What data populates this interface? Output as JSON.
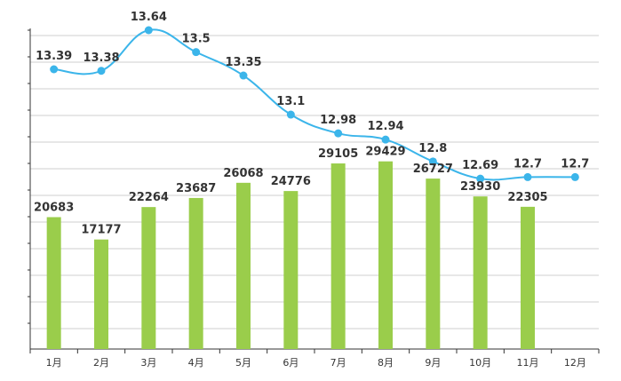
{
  "chart_data": {
    "type": "bar+line",
    "categories": [
      "1月",
      "2月",
      "3月",
      "4月",
      "5月",
      "6月",
      "7月",
      "8月",
      "9月",
      "10月",
      "11月",
      "12月"
    ],
    "series": [
      {
        "type": "bar",
        "values": [
          20683,
          17177,
          22264,
          23687,
          26068,
          24776,
          29105,
          29429,
          26727,
          23930,
          22305,
          null
        ],
        "labels": [
          "20683",
          "17177",
          "22264",
          "23687",
          "26068",
          "24776",
          "29105",
          "29429",
          "26727",
          "23930",
          "22305",
          ""
        ],
        "color": "#9acd4b",
        "ylim": [
          0,
          50000
        ]
      },
      {
        "type": "line",
        "values": [
          13.39,
          13.38,
          13.64,
          13.5,
          13.35,
          13.1,
          12.98,
          12.94,
          12.8,
          12.69,
          12.7,
          12.7
        ],
        "labels": [
          "13.39",
          "13.38",
          "13.64",
          "13.5",
          "13.35",
          "13.1",
          "12.98",
          "12.94",
          "12.8",
          "12.69",
          "12.7",
          "12.7"
        ],
        "color": "#3bb5ea",
        "ylim": [
          11.6,
          13.64
        ]
      }
    ],
    "grid": true,
    "legend": "none"
  }
}
